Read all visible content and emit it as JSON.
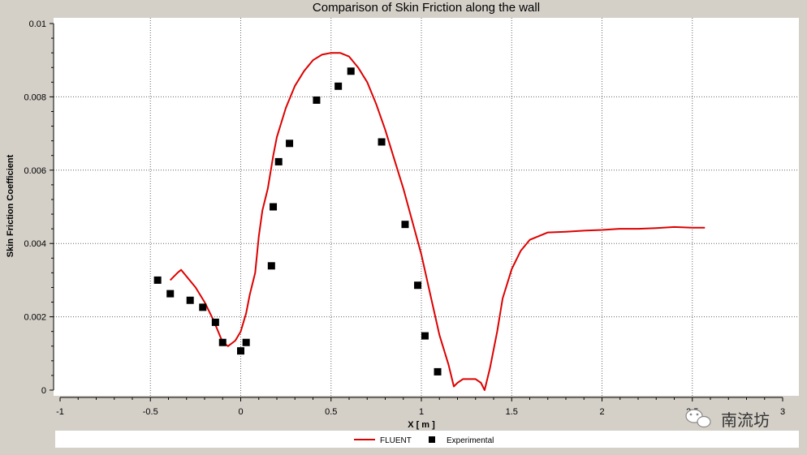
{
  "chart_data": {
    "type": "line",
    "title": "Comparison of Skin Friction along the wall",
    "xlabel": "X [ m ]",
    "ylabel": "Skin Friction Coefficient",
    "xlim": [
      -1,
      3
    ],
    "ylim": [
      0,
      0.01
    ],
    "x_ticks": [
      "-1",
      "-0.5",
      "0",
      "0.5",
      "1",
      "1.5",
      "2",
      "2.5",
      "3"
    ],
    "y_ticks": [
      "0",
      "0.002",
      "0.004",
      "0.006",
      "0.008",
      "0.01"
    ],
    "grid": true,
    "legend_position": "bottom",
    "series": [
      {
        "name": "FLUENT",
        "style": "line",
        "color": "#dd0000",
        "x": [
          -0.39,
          -0.35,
          -0.33,
          -0.3,
          -0.25,
          -0.2,
          -0.15,
          -0.1,
          -0.07,
          -0.03,
          0.0,
          0.03,
          0.05,
          0.08,
          0.1,
          0.12,
          0.15,
          0.18,
          0.2,
          0.25,
          0.3,
          0.35,
          0.4,
          0.45,
          0.5,
          0.55,
          0.6,
          0.65,
          0.7,
          0.75,
          0.8,
          0.85,
          0.9,
          0.95,
          1.0,
          1.05,
          1.1,
          1.15,
          1.18,
          1.2,
          1.23,
          1.27,
          1.3,
          1.33,
          1.35,
          1.38,
          1.42,
          1.45,
          1.5,
          1.55,
          1.6,
          1.7,
          1.8,
          1.9,
          2.0,
          2.1,
          2.2,
          2.3,
          2.4,
          2.5,
          2.57
        ],
        "y": [
          0.003,
          0.0032,
          0.00328,
          0.0031,
          0.0028,
          0.0024,
          0.0019,
          0.0013,
          0.0012,
          0.00135,
          0.0016,
          0.0021,
          0.0026,
          0.0032,
          0.0042,
          0.0049,
          0.0055,
          0.0064,
          0.0069,
          0.0077,
          0.0083,
          0.0087,
          0.009,
          0.00915,
          0.0092,
          0.0092,
          0.0091,
          0.0088,
          0.0084,
          0.0078,
          0.0071,
          0.0063,
          0.0055,
          0.0046,
          0.0037,
          0.0026,
          0.0015,
          0.0007,
          0.0001,
          0.0002,
          0.0003,
          0.0003,
          0.0003,
          0.0002,
          0.0,
          0.0006,
          0.0016,
          0.0025,
          0.0033,
          0.0038,
          0.0041,
          0.0043,
          0.00432,
          0.00435,
          0.00437,
          0.0044,
          0.0044,
          0.00442,
          0.00445,
          0.00443,
          0.00443
        ]
      },
      {
        "name": "Experimental",
        "style": "marker",
        "color": "#000000",
        "x": [
          -0.46,
          -0.39,
          -0.28,
          -0.21,
          -0.14,
          -0.1,
          0.0,
          0.03,
          0.17,
          0.18,
          0.21,
          0.27,
          0.42,
          0.54,
          0.61,
          0.78,
          0.91,
          0.98,
          1.02,
          1.09
        ],
        "y": [
          0.003,
          0.00263,
          0.00245,
          0.00226,
          0.00185,
          0.0013,
          0.00107,
          0.0013,
          0.00339,
          0.005,
          0.00623,
          0.00673,
          0.00791,
          0.00829,
          0.0087,
          0.00677,
          0.00452,
          0.00286,
          0.00148,
          0.0005
        ]
      }
    ]
  },
  "watermark": {
    "text": "南流坊",
    "icon": "wechat-icon"
  }
}
